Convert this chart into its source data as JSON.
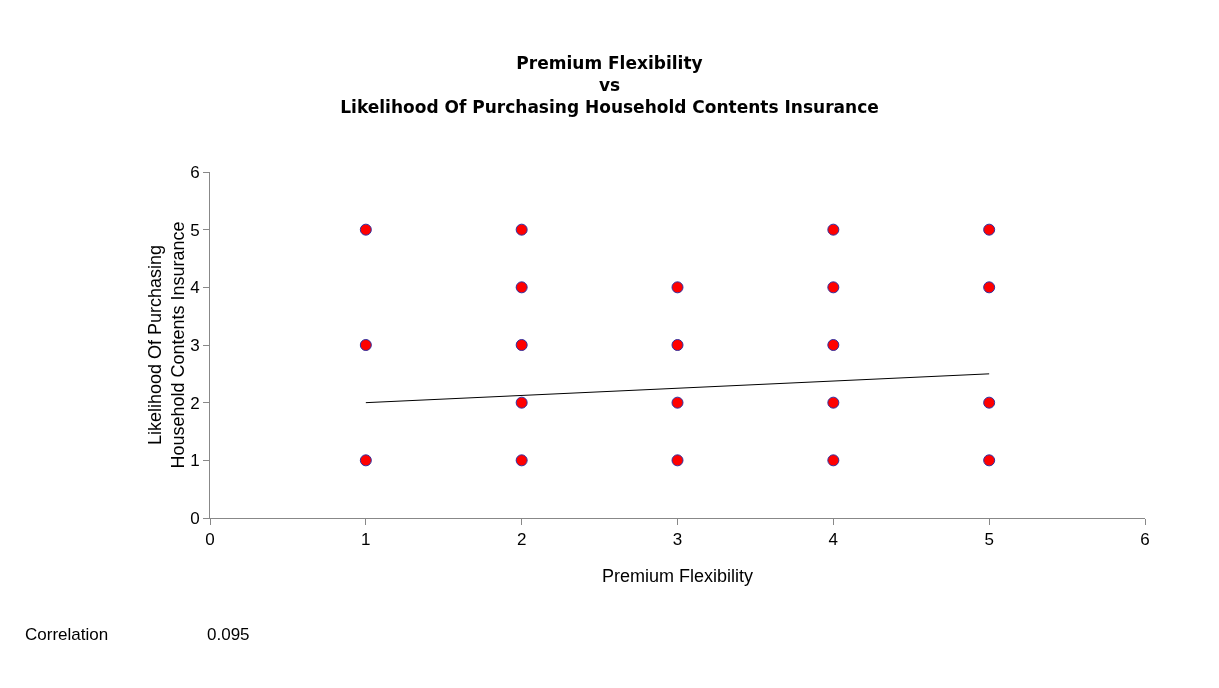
{
  "chart_data": {
    "type": "scatter",
    "title": "Premium Flexibility\nvs\nLikelihood Of Purchasing Household Contents Insurance",
    "xlabel": "Premium Flexibility",
    "ylabel": "Likelihood Of Purchasing\nHousehold Contents Insurance",
    "series": [
      {
        "color": "#ff0000",
        "marker": "circle",
        "x": [
          1,
          1,
          1,
          2,
          2,
          2,
          2,
          2,
          3,
          3,
          3,
          3,
          4,
          4,
          4,
          4,
          4,
          5,
          5,
          5,
          5
        ],
        "values": [
          5,
          3,
          1,
          5,
          4,
          3,
          2,
          1,
          4,
          3,
          2,
          1,
          5,
          4,
          3,
          2,
          1,
          5,
          4,
          2,
          1
        ]
      },
      {
        "type": "line",
        "color": "#000000",
        "marker": "none",
        "x": [
          1,
          5
        ],
        "values": [
          2.0,
          2.5
        ]
      }
    ],
    "xlim": [
      0,
      6
    ],
    "xticks": [
      0,
      1,
      2,
      3,
      4,
      5,
      6
    ],
    "ylim": [
      0,
      6
    ],
    "yticks": [
      0,
      1,
      2,
      3,
      4,
      5,
      6
    ],
    "grid": false,
    "line_style": "solid",
    "annotations": [
      "Correlation",
      "0.095"
    ]
  }
}
